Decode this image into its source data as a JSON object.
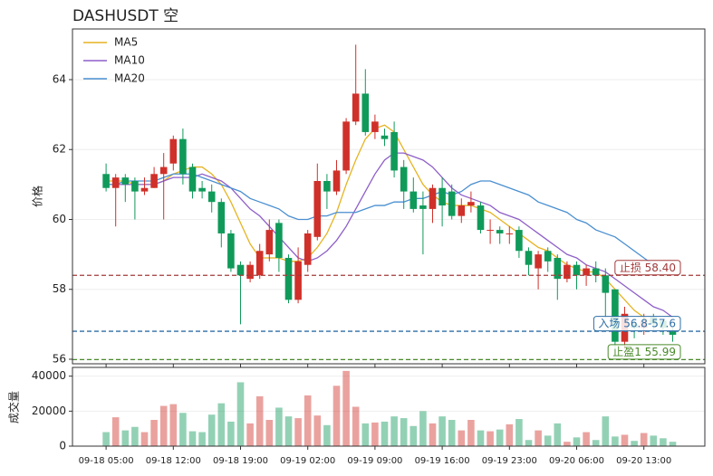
{
  "chart_data": {
    "type": "candlestick",
    "title": "DASHUSDT 空",
    "y_label": "价格",
    "volume_label": "成交量",
    "up_color": "#d0302a",
    "down_color": "#109a5a",
    "grid": true,
    "legend": "upper left",
    "categories": [
      "09-18 05:00",
      null,
      null,
      null,
      null,
      null,
      null,
      "09-18 12:00",
      null,
      null,
      null,
      null,
      null,
      null,
      "09-18 19:00",
      null,
      null,
      null,
      null,
      null,
      null,
      "09-19 02:00",
      null,
      null,
      null,
      null,
      null,
      null,
      "09-19 09:00",
      null,
      null,
      null,
      null,
      null,
      null,
      "09-19 16:00",
      null,
      null,
      null,
      null,
      null,
      null,
      "09-19 23:00",
      null,
      null,
      null,
      null,
      null,
      null,
      "09-20 06:00",
      null,
      null,
      null,
      null,
      null,
      null,
      "09-20 13:00",
      null,
      null,
      null
    ],
    "open": [
      61.3,
      60.9,
      61.2,
      61.1,
      60.8,
      60.9,
      61.3,
      61.6,
      62.3,
      61.5,
      60.9,
      60.8,
      60.5,
      59.6,
      58.7,
      58.3,
      58.4,
      59.0,
      59.9,
      58.9,
      57.7,
      58.7,
      59.5,
      61.1,
      60.8,
      61.4,
      62.8,
      63.6,
      62.5,
      62.4,
      62.5,
      61.5,
      60.8,
      60.4,
      60.3,
      60.9,
      60.8,
      60.1,
      60.4,
      60.4,
      59.7,
      59.7,
      59.6,
      59.7,
      59.1,
      58.6,
      59.1,
      58.9,
      58.3,
      58.7,
      58.4,
      58.6,
      58.4,
      58.0,
      56.5,
      57.0,
      56.9,
      57.2,
      57.1,
      56.8
    ],
    "high": [
      61.6,
      61.3,
      61.3,
      61.2,
      61.2,
      61.5,
      61.9,
      62.4,
      62.6,
      61.6,
      61.1,
      61.0,
      60.6,
      59.7,
      58.8,
      58.8,
      59.3,
      60.0,
      60.0,
      59.0,
      59.2,
      59.7,
      61.6,
      61.3,
      61.7,
      62.9,
      65.0,
      64.3,
      63.0,
      62.6,
      62.8,
      61.7,
      61.2,
      60.8,
      61.0,
      61.2,
      61.0,
      60.6,
      60.8,
      60.5,
      60.0,
      59.8,
      59.8,
      59.8,
      59.2,
      59.1,
      59.2,
      59.0,
      58.8,
      58.8,
      58.7,
      58.8,
      58.6,
      58.0,
      57.5,
      57.1,
      57.3,
      57.3,
      57.1,
      56.9
    ],
    "low": [
      60.8,
      59.8,
      60.5,
      60.0,
      60.7,
      60.9,
      60.0,
      61.4,
      61.0,
      60.6,
      60.6,
      60.2,
      59.2,
      58.5,
      57.0,
      58.2,
      58.3,
      58.8,
      58.5,
      57.6,
      57.6,
      58.5,
      59.4,
      60.3,
      60.7,
      61.3,
      62.7,
      62.4,
      62.3,
      62.1,
      61.2,
      60.3,
      60.2,
      59.0,
      59.9,
      59.8,
      60.0,
      59.9,
      60.2,
      59.6,
      59.3,
      59.3,
      59.3,
      58.9,
      58.4,
      58.0,
      58.5,
      57.7,
      58.2,
      58.0,
      58.1,
      58.2,
      57.2,
      56.2,
      56.3,
      56.6,
      56.7,
      56.8,
      56.7,
      56.5
    ],
    "close": [
      60.9,
      61.2,
      61.0,
      60.8,
      60.9,
      61.3,
      61.5,
      62.3,
      61.3,
      60.8,
      60.8,
      60.5,
      59.6,
      58.6,
      58.4,
      58.7,
      59.1,
      59.7,
      58.9,
      57.7,
      58.8,
      59.6,
      61.1,
      60.8,
      61.4,
      62.8,
      63.6,
      62.5,
      62.8,
      62.3,
      61.4,
      60.8,
      60.3,
      60.3,
      60.9,
      60.4,
      60.1,
      60.4,
      60.5,
      59.7,
      59.7,
      59.6,
      59.6,
      59.1,
      58.7,
      59.0,
      58.8,
      58.3,
      58.7,
      58.4,
      58.6,
      58.4,
      57.9,
      56.5,
      57.3,
      56.9,
      57.1,
      57.0,
      56.9,
      56.7
    ],
    "volume": [
      8000,
      16500,
      9000,
      11000,
      8000,
      15000,
      23000,
      24000,
      19000,
      8500,
      8000,
      18000,
      24500,
      14000,
      36500,
      13000,
      28500,
      15000,
      22000,
      17000,
      16000,
      29000,
      17500,
      12000,
      34500,
      43000,
      22500,
      13000,
      13500,
      14000,
      17000,
      16000,
      11500,
      20000,
      13000,
      17000,
      15000,
      9000,
      15000,
      9000,
      8500,
      9500,
      12500,
      15500,
      3500,
      9000,
      6000,
      13000,
      2500,
      5000,
      8000,
      3500,
      17000,
      5500,
      6500,
      3000,
      7500,
      6000,
      4500,
      2500
    ],
    "series": [
      {
        "name": "MA5",
        "color": "#e6b422",
        "values": [
          61.1,
          61.1,
          61.1,
          61.0,
          61.0,
          61.0,
          61.1,
          61.3,
          61.4,
          61.5,
          61.5,
          61.3,
          61.0,
          60.5,
          59.9,
          59.3,
          58.9,
          58.9,
          58.9,
          58.8,
          58.8,
          58.9,
          59.2,
          59.6,
          60.2,
          61.0,
          61.7,
          62.3,
          62.6,
          62.7,
          62.5,
          62.0,
          61.5,
          61.0,
          60.7,
          60.5,
          60.4,
          60.4,
          60.4,
          60.3,
          60.2,
          60.0,
          59.8,
          59.6,
          59.4,
          59.2,
          59.1,
          58.9,
          58.7,
          58.6,
          58.5,
          58.5,
          58.3,
          58.0,
          57.7,
          57.4,
          57.2,
          57.0,
          null,
          null
        ]
      },
      {
        "name": "MA10",
        "color": "#8e5fc8",
        "values": [
          61.0,
          61.0,
          61.0,
          61.0,
          61.0,
          61.0,
          61.1,
          61.2,
          61.2,
          61.2,
          61.3,
          61.2,
          61.1,
          60.9,
          60.6,
          60.3,
          60.1,
          59.8,
          59.5,
          59.2,
          58.9,
          58.8,
          58.9,
          59.1,
          59.4,
          59.8,
          60.3,
          60.8,
          61.3,
          61.7,
          61.9,
          61.9,
          61.8,
          61.7,
          61.5,
          61.2,
          60.9,
          60.7,
          60.6,
          60.5,
          60.4,
          60.2,
          60.1,
          60.0,
          59.8,
          59.6,
          59.4,
          59.2,
          59.0,
          58.9,
          58.7,
          58.6,
          58.5,
          58.3,
          58.1,
          57.9,
          57.7,
          57.5,
          57.4,
          57.2
        ]
      },
      {
        "name": "MA20",
        "color": "#4a8fd0",
        "values": [
          61.0,
          61.0,
          61.1,
          61.1,
          61.1,
          61.1,
          61.2,
          61.3,
          61.3,
          61.3,
          61.2,
          61.1,
          61.0,
          60.9,
          60.8,
          60.6,
          60.5,
          60.4,
          60.3,
          60.1,
          60.0,
          60.0,
          60.1,
          60.1,
          60.2,
          60.2,
          60.2,
          60.3,
          60.4,
          60.4,
          60.5,
          60.5,
          60.6,
          60.6,
          60.7,
          60.8,
          60.7,
          60.8,
          61.0,
          61.1,
          61.1,
          61.0,
          60.9,
          60.8,
          60.7,
          60.5,
          60.4,
          60.3,
          60.2,
          60.0,
          59.9,
          59.7,
          59.6,
          59.5,
          59.3,
          59.1,
          58.9,
          58.7,
          58.5,
          null
        ]
      }
    ],
    "levels": [
      {
        "label": "止损 58.40",
        "value": 58.4,
        "color": "#a33a3a"
      },
      {
        "label": "入场 56.8-57.6",
        "value": 56.8,
        "color": "#2e6ea6"
      },
      {
        "label": "止盈1 55.99",
        "value": 55.99,
        "color": "#4a8a2a"
      }
    ],
    "ylim": [
      55.87,
      65.45
    ],
    "yticks": [
      56,
      58,
      60,
      62,
      64
    ],
    "y2lim": [
      0,
      45000
    ],
    "y2ticks": [
      0,
      20000,
      40000
    ]
  }
}
